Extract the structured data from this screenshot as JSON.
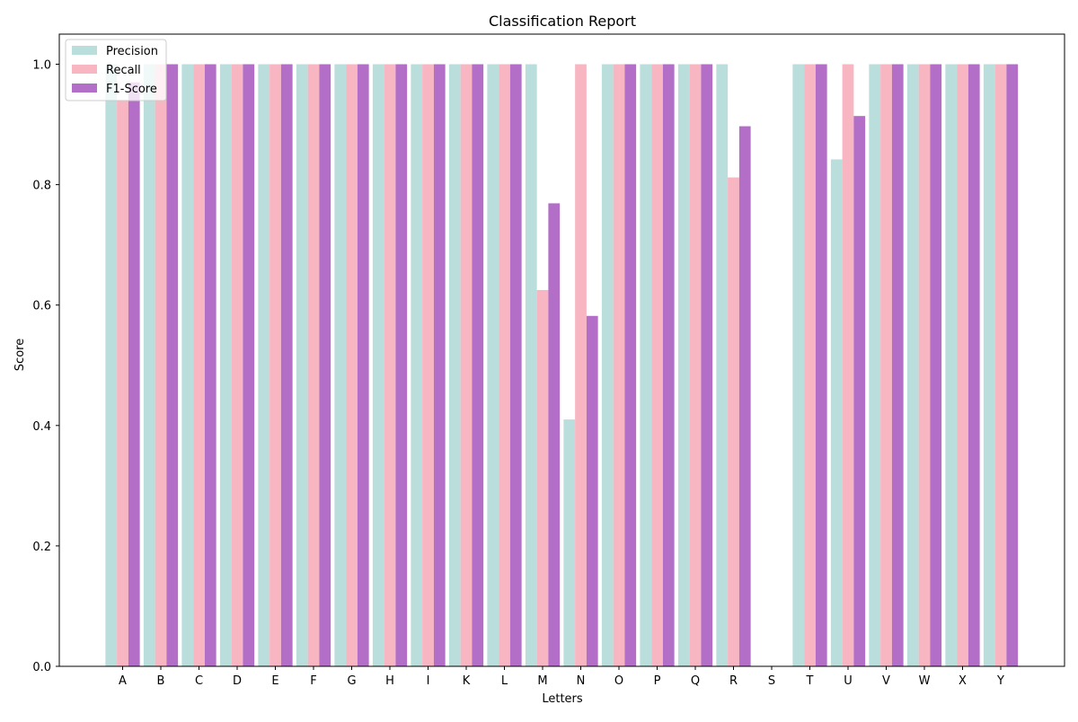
{
  "chart_data": {
    "type": "bar",
    "title": "Classification Report",
    "xlabel": "Letters",
    "ylabel": "Score",
    "ylim": [
      0,
      1.05
    ],
    "yticks": [
      0.0,
      0.2,
      0.4,
      0.6,
      0.8,
      1.0
    ],
    "ytick_labels": [
      "0.0",
      "0.2",
      "0.4",
      "0.6",
      "0.8",
      "1.0"
    ],
    "grid": false,
    "legend_position": "top-left",
    "categories": [
      "A",
      "B",
      "C",
      "D",
      "E",
      "F",
      "G",
      "H",
      "I",
      "K",
      "L",
      "M",
      "N",
      "O",
      "P",
      "Q",
      "R",
      "S",
      "T",
      "U",
      "V",
      "W",
      "X",
      "Y"
    ],
    "series": [
      {
        "name": "Precision",
        "color": "#b9dedc",
        "values": [
          1.0,
          1.0,
          1.0,
          1.0,
          1.0,
          1.0,
          1.0,
          1.0,
          1.0,
          1.0,
          1.0,
          1.0,
          0.41,
          1.0,
          1.0,
          1.0,
          1.0,
          0.0,
          1.0,
          0.842,
          1.0,
          1.0,
          1.0,
          1.0
        ]
      },
      {
        "name": "Recall",
        "color": "#f7b6c1",
        "values": [
          0.94,
          1.0,
          1.0,
          1.0,
          1.0,
          1.0,
          1.0,
          1.0,
          1.0,
          1.0,
          1.0,
          0.625,
          1.0,
          1.0,
          1.0,
          1.0,
          0.812,
          0.0,
          1.0,
          1.0,
          1.0,
          1.0,
          1.0,
          1.0
        ]
      },
      {
        "name": "F1-Score",
        "color": "#b36fc8",
        "values": [
          0.97,
          1.0,
          1.0,
          1.0,
          1.0,
          1.0,
          1.0,
          1.0,
          1.0,
          1.0,
          1.0,
          0.769,
          0.582,
          1.0,
          1.0,
          1.0,
          0.897,
          0.0,
          1.0,
          0.914,
          1.0,
          1.0,
          1.0,
          1.0
        ]
      }
    ]
  }
}
